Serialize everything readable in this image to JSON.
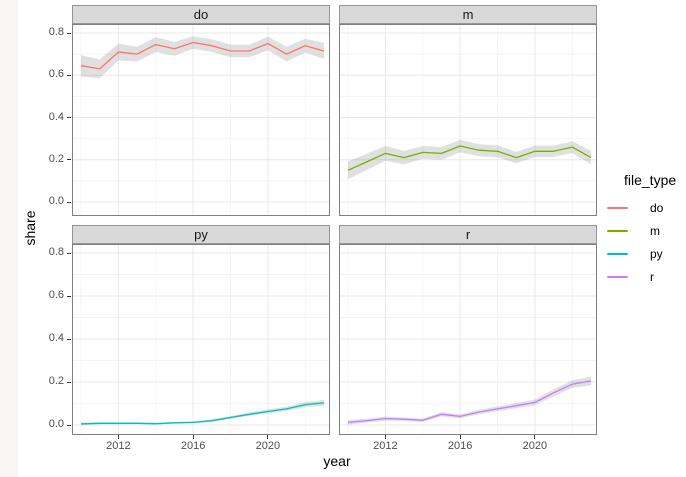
{
  "window": {
    "background": "#ffffff",
    "left_edge_color": "#f7f6f5"
  },
  "chart_data": {
    "type": "line",
    "title": "",
    "xlabel": "year",
    "ylabel": "share",
    "x": [
      2010,
      2011,
      2012,
      2013,
      2014,
      2015,
      2016,
      2017,
      2018,
      2019,
      2020,
      2021,
      2022,
      2023
    ],
    "x_ticks": [
      "2012",
      "2016",
      "2020"
    ],
    "x_tick_years": [
      2012,
      2016,
      2020
    ],
    "x_minor_years": [
      2010,
      2014,
      2018,
      2022
    ],
    "y_ticks": [
      "0.0",
      "0.2",
      "0.4",
      "0.6",
      "0.8"
    ],
    "y_tick_values": [
      0,
      0.2,
      0.4,
      0.6,
      0.8
    ],
    "y_minor_values": [
      0.1,
      0.3,
      0.5,
      0.7
    ],
    "xlim": [
      2009.5,
      2023.35
    ],
    "ylim": [
      -0.066,
      0.84
    ],
    "grid": "major+minor",
    "legend_position": "right",
    "ribbon": {
      "color": "#999999",
      "opacity": 0.3
    },
    "facets": [
      {
        "label": "do",
        "color": "#F8766D",
        "values": [
          0.645,
          0.63,
          0.71,
          0.7,
          0.745,
          0.725,
          0.755,
          0.74,
          0.715,
          0.715,
          0.75,
          0.7,
          0.74,
          0.715
        ],
        "ci": [
          0.05,
          0.045,
          0.04,
          0.035,
          0.035,
          0.033,
          0.03,
          0.03,
          0.03,
          0.03,
          0.032,
          0.035,
          0.033,
          0.038
        ]
      },
      {
        "label": "m",
        "color": "#7CAE00",
        "values": [
          0.15,
          0.19,
          0.23,
          0.21,
          0.235,
          0.23,
          0.265,
          0.245,
          0.24,
          0.21,
          0.24,
          0.24,
          0.26,
          0.21
        ],
        "ci": [
          0.042,
          0.038,
          0.035,
          0.032,
          0.03,
          0.03,
          0.03,
          0.028,
          0.028,
          0.027,
          0.027,
          0.027,
          0.028,
          0.032
        ]
      },
      {
        "label": "py",
        "color": "#00BFC4",
        "values": [
          0.005,
          0.008,
          0.008,
          0.008,
          0.006,
          0.01,
          0.012,
          0.02,
          0.035,
          0.05,
          0.063,
          0.075,
          0.095,
          0.103
        ],
        "ci": [
          0.006,
          0.005,
          0.005,
          0.004,
          0.004,
          0.004,
          0.005,
          0.006,
          0.007,
          0.008,
          0.009,
          0.01,
          0.012,
          0.013
        ]
      },
      {
        "label": "r",
        "color": "#C77CFF",
        "values": [
          0.012,
          0.02,
          0.03,
          0.027,
          0.022,
          0.05,
          0.04,
          0.06,
          0.075,
          0.09,
          0.105,
          0.15,
          0.19,
          0.205
        ],
        "ci": [
          0.01,
          0.009,
          0.009,
          0.008,
          0.008,
          0.01,
          0.009,
          0.01,
          0.011,
          0.012,
          0.013,
          0.016,
          0.018,
          0.02
        ]
      }
    ]
  },
  "legend": {
    "title": "file_type",
    "items": [
      {
        "label": "do",
        "color": "#F8766D"
      },
      {
        "label": "m",
        "color": "#7CAE00"
      },
      {
        "label": "py",
        "color": "#00BFC4"
      },
      {
        "label": "r",
        "color": "#C77CFF"
      }
    ]
  },
  "theme": {
    "strip_fill": "#d9d9d9",
    "strip_border": "#969696",
    "panel_border": "#808080",
    "grid_major": "#e8e8e8",
    "grid_minor": "#f4f4f4",
    "tick_color": "#333333",
    "tick_label_color": "#4d4d4d",
    "axis_title_color": "#000000"
  }
}
